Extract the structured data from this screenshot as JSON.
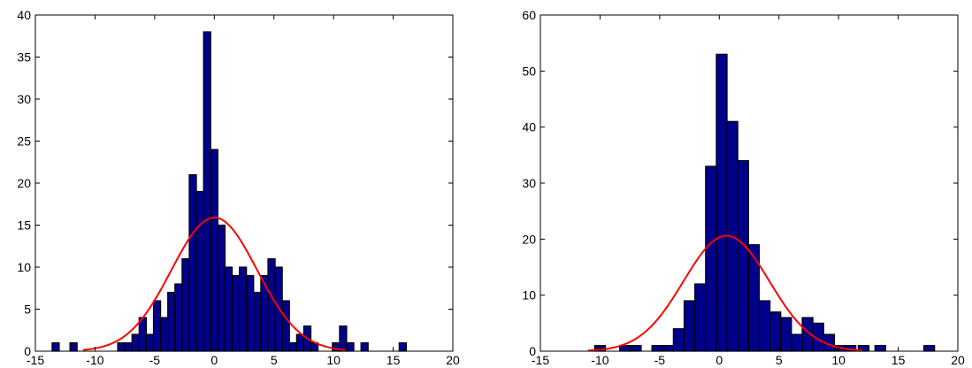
{
  "chart_data": [
    {
      "type": "bar",
      "subtype": "histogram-with-normal-fit",
      "xlim": [
        -15,
        20
      ],
      "ylim": [
        0,
        40
      ],
      "xticks": [
        "-15",
        "-10",
        "-5",
        "0",
        "5",
        "10",
        "15",
        "20"
      ],
      "yticks": [
        "0",
        "5",
        "10",
        "15",
        "20",
        "25",
        "30",
        "35",
        "40"
      ],
      "bin_width": 0.6,
      "bins": [
        {
          "x": -13.3,
          "y": 1
        },
        {
          "x": -11.8,
          "y": 1
        },
        {
          "x": -7.8,
          "y": 1
        },
        {
          "x": -7.2,
          "y": 1
        },
        {
          "x": -6.6,
          "y": 2
        },
        {
          "x": -6.0,
          "y": 4
        },
        {
          "x": -5.4,
          "y": 2
        },
        {
          "x": -4.8,
          "y": 6
        },
        {
          "x": -4.2,
          "y": 4
        },
        {
          "x": -3.6,
          "y": 7
        },
        {
          "x": -3.0,
          "y": 8
        },
        {
          "x": -2.4,
          "y": 11
        },
        {
          "x": -1.8,
          "y": 21
        },
        {
          "x": -1.2,
          "y": 19
        },
        {
          "x": -0.6,
          "y": 38
        },
        {
          "x": 0.0,
          "y": 24
        },
        {
          "x": 0.6,
          "y": 15
        },
        {
          "x": 1.2,
          "y": 10
        },
        {
          "x": 1.8,
          "y": 9
        },
        {
          "x": 2.4,
          "y": 10
        },
        {
          "x": 3.0,
          "y": 9
        },
        {
          "x": 3.6,
          "y": 7
        },
        {
          "x": 4.2,
          "y": 9
        },
        {
          "x": 4.8,
          "y": 11
        },
        {
          "x": 5.4,
          "y": 10
        },
        {
          "x": 6.0,
          "y": 6
        },
        {
          "x": 6.6,
          "y": 1
        },
        {
          "x": 7.2,
          "y": 2
        },
        {
          "x": 7.8,
          "y": 3
        },
        {
          "x": 8.4,
          "y": 1
        },
        {
          "x": 10.2,
          "y": 1
        },
        {
          "x": 10.8,
          "y": 3
        },
        {
          "x": 11.4,
          "y": 1
        },
        {
          "x": 12.6,
          "y": 1
        },
        {
          "x": 15.8,
          "y": 1
        }
      ],
      "fit": {
        "mean": 0.0,
        "sd": 3.6,
        "peak": 15.9,
        "xmin": -11,
        "xmax": 11
      },
      "colors": {
        "bar": "#00008b",
        "curve": "#ff0000"
      }
    },
    {
      "type": "bar",
      "subtype": "histogram-with-normal-fit",
      "xlim": [
        -15,
        20
      ],
      "ylim": [
        0,
        60
      ],
      "xticks": [
        "-15",
        "-10",
        "-5",
        "0",
        "5",
        "10",
        "15",
        "20"
      ],
      "yticks": [
        "0",
        "10",
        "20",
        "30",
        "40",
        "50",
        "60"
      ],
      "bin_width": 0.9,
      "bins": [
        {
          "x": -10.0,
          "y": 1
        },
        {
          "x": -7.9,
          "y": 1
        },
        {
          "x": -7.0,
          "y": 1
        },
        {
          "x": -5.2,
          "y": 1
        },
        {
          "x": -4.3,
          "y": 1
        },
        {
          "x": -3.4,
          "y": 4
        },
        {
          "x": -2.5,
          "y": 9
        },
        {
          "x": -1.6,
          "y": 12
        },
        {
          "x": -0.7,
          "y": 33
        },
        {
          "x": 0.2,
          "y": 53
        },
        {
          "x": 1.1,
          "y": 41
        },
        {
          "x": 2.0,
          "y": 34
        },
        {
          "x": 2.9,
          "y": 19
        },
        {
          "x": 3.8,
          "y": 9
        },
        {
          "x": 4.7,
          "y": 7
        },
        {
          "x": 5.6,
          "y": 6
        },
        {
          "x": 6.5,
          "y": 3
        },
        {
          "x": 7.4,
          "y": 6
        },
        {
          "x": 8.3,
          "y": 5
        },
        {
          "x": 9.2,
          "y": 3
        },
        {
          "x": 10.1,
          "y": 1
        },
        {
          "x": 11.0,
          "y": 1
        },
        {
          "x": 12.1,
          "y": 1
        },
        {
          "x": 13.5,
          "y": 1
        },
        {
          "x": 17.6,
          "y": 1
        }
      ],
      "fit": {
        "mean": 0.6,
        "sd": 3.6,
        "peak": 20.6,
        "xmin": -11,
        "xmax": 12
      },
      "colors": {
        "bar": "#00008b",
        "curve": "#ff0000"
      }
    }
  ]
}
